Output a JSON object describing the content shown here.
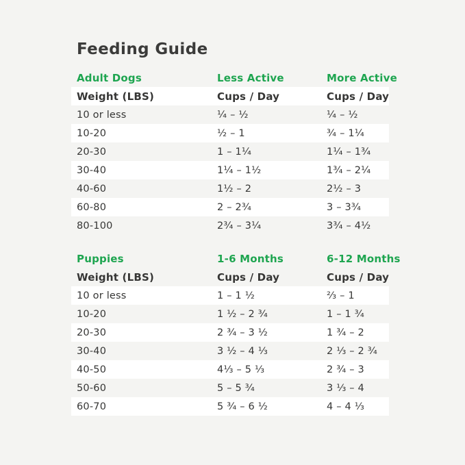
{
  "page": {
    "title": "Feeding Guide",
    "colors": {
      "background": "#f4f4f2",
      "row_highlight": "#ffffff",
      "heading_green": "#1ea550",
      "text": "#363635"
    }
  },
  "tables": [
    {
      "group_label": "Adult Dogs",
      "col2_header": "Less Active",
      "col3_header": "More Active",
      "subheader": {
        "col1": "Weight (LBS)",
        "col2": "Cups / Day",
        "col3": "Cups / Day"
      },
      "rows": [
        {
          "weight": "10 or less",
          "cups1": "¼ – ½",
          "cups2": "¼ – ½"
        },
        {
          "weight": "10-20",
          "cups1": "½ – 1",
          "cups2": "¾ – 1¼"
        },
        {
          "weight": "20-30",
          "cups1": "1 – 1¼",
          "cups2": "1¼ – 1¾"
        },
        {
          "weight": "30-40",
          "cups1": "1¼ – 1½",
          "cups2": "1¾ – 2¼"
        },
        {
          "weight": "40-60",
          "cups1": "1½ – 2",
          "cups2": "2½ – 3"
        },
        {
          "weight": "60-80",
          "cups1": "2 – 2¾",
          "cups2": "3 – 3¾"
        },
        {
          "weight": "80-100",
          "cups1": "2¾ – 3¼",
          "cups2": "3¾ – 4½"
        }
      ]
    },
    {
      "group_label": "Puppies",
      "col2_header": "1-6 Months",
      "col3_header": "6-12 Months",
      "subheader": {
        "col1": "Weight (LBS)",
        "col2": "Cups / Day",
        "col3": "Cups / Day"
      },
      "rows": [
        {
          "weight": "10 or less",
          "cups1": "1 – 1 ½",
          "cups2": "⅔ – 1"
        },
        {
          "weight": "10-20",
          "cups1": "1 ½ – 2 ¾",
          "cups2": "1 – 1 ¾"
        },
        {
          "weight": "20-30",
          "cups1": "2 ¾ – 3 ½",
          "cups2": "1 ¾ – 2"
        },
        {
          "weight": "30-40",
          "cups1": "3 ½ – 4 ⅓",
          "cups2": "2 ⅓ – 2 ¾"
        },
        {
          "weight": "40-50",
          "cups1": "4⅓ – 5 ⅓",
          "cups2": "2 ¾ – 3"
        },
        {
          "weight": "50-60",
          "cups1": "5 – 5 ¾",
          "cups2": "3 ⅓ – 4"
        },
        {
          "weight": "60-70",
          "cups1": "5 ¾ – 6 ½",
          "cups2": "4 – 4 ⅓"
        }
      ]
    }
  ]
}
